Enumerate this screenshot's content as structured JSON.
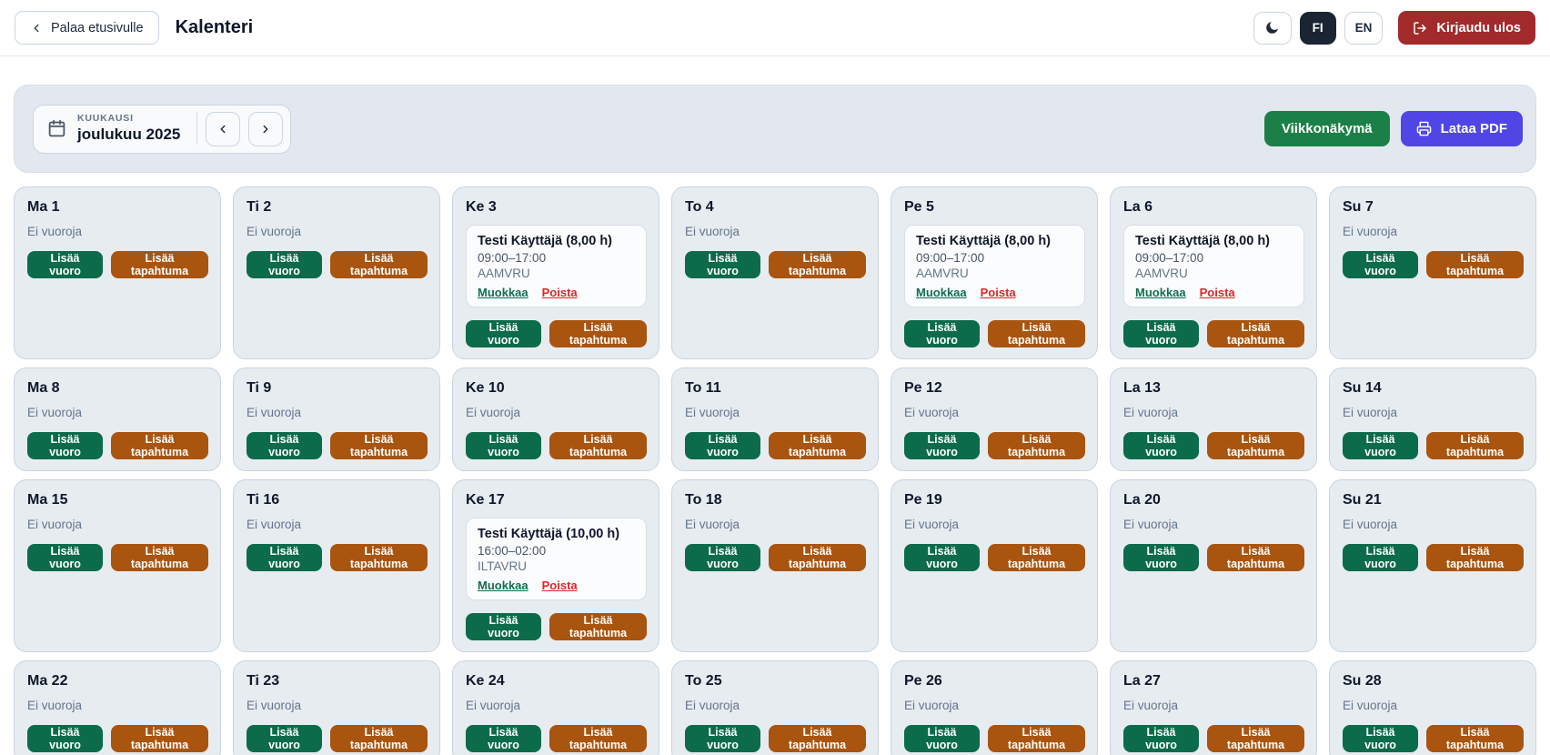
{
  "header": {
    "back_button": "Palaa etusivulle",
    "title": "Kalenteri",
    "lang_fi": "FI",
    "lang_en": "EN",
    "logout": "Kirjaudu ulos"
  },
  "toolbar": {
    "period_label": "KUUKAUSI",
    "period_value": "joulukuu 2025",
    "week_view_button": "Viikkonäkymä",
    "pdf_button": "Lataa PDF"
  },
  "calendar": {
    "empty_text": "Ei vuoroja",
    "add_shift_label": "Lisää vuoro",
    "add_event_label": "Lisää tapahtuma",
    "edit_label": "Muokkaa",
    "delete_label": "Poista",
    "weeks": [
      {
        "days": [
          {
            "label": "Ma 1",
            "shifts": []
          },
          {
            "label": "Ti 2",
            "shifts": []
          },
          {
            "label": "Ke 3",
            "shifts": [
              {
                "title": "Testi Käyttäjä (8,00 h)",
                "time": "09:00–17:00",
                "code": "AAMVRU"
              }
            ]
          },
          {
            "label": "To 4",
            "shifts": []
          },
          {
            "label": "Pe 5",
            "shifts": [
              {
                "title": "Testi Käyttäjä (8,00 h)",
                "time": "09:00–17:00",
                "code": "AAMVRU"
              }
            ]
          },
          {
            "label": "La 6",
            "shifts": [
              {
                "title": "Testi Käyttäjä (8,00 h)",
                "time": "09:00–17:00",
                "code": "AAMVRU"
              }
            ]
          },
          {
            "label": "Su 7",
            "shifts": []
          }
        ]
      },
      {
        "days": [
          {
            "label": "Ma 8",
            "shifts": []
          },
          {
            "label": "Ti 9",
            "shifts": []
          },
          {
            "label": "Ke 10",
            "shifts": []
          },
          {
            "label": "To 11",
            "shifts": []
          },
          {
            "label": "Pe 12",
            "shifts": []
          },
          {
            "label": "La 13",
            "shifts": []
          },
          {
            "label": "Su 14",
            "shifts": []
          }
        ]
      },
      {
        "days": [
          {
            "label": "Ma 15",
            "shifts": []
          },
          {
            "label": "Ti 16",
            "shifts": []
          },
          {
            "label": "Ke 17",
            "shifts": [
              {
                "title": "Testi Käyttäjä (10,00 h)",
                "time": "16:00–02:00",
                "code": "ILTAVRU"
              }
            ]
          },
          {
            "label": "To 18",
            "shifts": []
          },
          {
            "label": "Pe 19",
            "shifts": []
          },
          {
            "label": "La 20",
            "shifts": []
          },
          {
            "label": "Su 21",
            "shifts": []
          }
        ]
      },
      {
        "days": [
          {
            "label": "Ma 22",
            "shifts": []
          },
          {
            "label": "Ti 23",
            "shifts": []
          },
          {
            "label": "Ke 24",
            "shifts": []
          },
          {
            "label": "To 25",
            "shifts": []
          },
          {
            "label": "Pe 26",
            "shifts": []
          },
          {
            "label": "La 27",
            "shifts": []
          },
          {
            "label": "Su 28",
            "shifts": []
          }
        ]
      }
    ]
  },
  "colors": {
    "add_shift_green": "#0c6b4a",
    "add_event_brown": "#a9540f",
    "week_view_green": "#1b8047",
    "pdf_indigo": "#4f46e5",
    "logout_red": "#a22a2a",
    "lang_active_navy": "#1a2433",
    "edit_link_green": "#0e6f4f",
    "delete_link_red": "#dc2626",
    "cell_bg": "#e7ecf1",
    "panel_bg": "#e3e8ef"
  }
}
